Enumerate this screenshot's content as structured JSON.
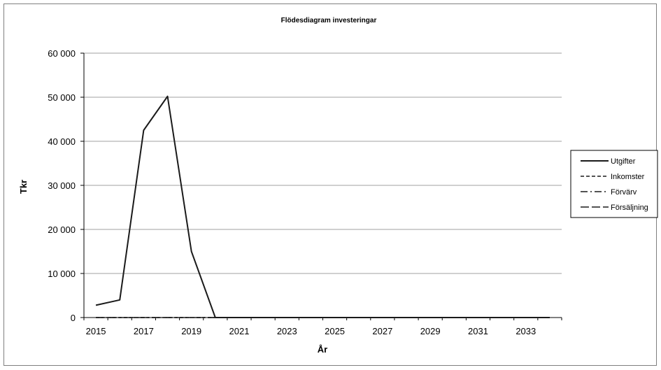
{
  "chart_data": {
    "type": "line",
    "title": "Flödesdiagram investeringar",
    "xlabel": "År",
    "ylabel": "Tkr",
    "x": [
      2015,
      2016,
      2017,
      2018,
      2019,
      2020,
      2021,
      2022,
      2023,
      2024,
      2025,
      2026,
      2027,
      2028,
      2029,
      2030,
      2031,
      2032,
      2033,
      2034
    ],
    "x_tick_labels": [
      "2015",
      "2017",
      "2019",
      "2021",
      "2023",
      "2025",
      "2027",
      "2029",
      "2031",
      "2033"
    ],
    "y_tick_labels": [
      "0",
      "10 000",
      "20 000",
      "30 000",
      "40 000",
      "50 000",
      "60 000"
    ],
    "ylim": [
      0,
      60000
    ],
    "grid": true,
    "legend_position": "right",
    "series": [
      {
        "name": "Utgifter",
        "line_style": "solid",
        "color": "#1a1a1a",
        "values": [
          2800,
          4000,
          42500,
          50200,
          15000,
          0,
          0,
          0,
          0,
          0,
          0,
          0,
          0,
          0,
          0,
          0,
          0,
          0,
          0,
          0
        ]
      },
      {
        "name": "Inkomster",
        "line_style": "dashed",
        "color": "#1a1a1a",
        "values": [
          0,
          0,
          0,
          0,
          0,
          0,
          0,
          0,
          0,
          0,
          0,
          0,
          0,
          0,
          0,
          0,
          0,
          0,
          0,
          0
        ]
      },
      {
        "name": "Förvärv",
        "line_style": "dash-dot",
        "color": "#1a1a1a",
        "values": [
          0,
          0,
          0,
          0,
          0,
          0,
          0,
          0,
          0,
          0,
          0,
          0,
          0,
          0,
          0,
          0,
          0,
          0,
          0,
          0
        ]
      },
      {
        "name": "Försäljning",
        "line_style": "long-dash",
        "color": "#1a1a1a",
        "values": [
          0,
          0,
          0,
          0,
          0,
          0,
          0,
          0,
          0,
          0,
          0,
          0,
          0,
          0,
          0,
          0,
          0,
          0,
          0,
          0
        ]
      }
    ]
  }
}
